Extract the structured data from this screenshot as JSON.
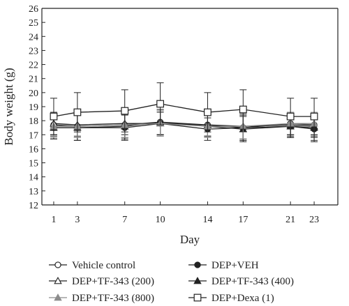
{
  "chart_data": {
    "type": "line",
    "title": "",
    "xlabel": "Day",
    "ylabel": "Body weight (g)",
    "x": [
      1,
      3,
      7,
      10,
      14,
      17,
      21,
      23
    ],
    "x_ticks": [
      "1",
      "3",
      "7",
      "10",
      "14",
      "17",
      "21",
      "23"
    ],
    "xlim": [
      0,
      25
    ],
    "ylim": [
      12,
      26
    ],
    "y_ticks": [
      "12",
      "13",
      "14",
      "15",
      "16",
      "17",
      "18",
      "19",
      "20",
      "21",
      "22",
      "23",
      "24",
      "25",
      "26"
    ],
    "grid": false,
    "legend_position": "bottom",
    "series": [
      {
        "name": "Vehicle control",
        "marker": "open-circle",
        "color": "#222222",
        "values": [
          17.7,
          17.6,
          17.7,
          17.9,
          17.7,
          17.5,
          17.8,
          17.7
        ],
        "err": [
          0.8,
          0.8,
          0.9,
          0.9,
          0.8,
          0.9,
          0.8,
          0.8
        ]
      },
      {
        "name": "DEP+VEH",
        "marker": "filled-circle",
        "color": "#222222",
        "values": [
          17.5,
          17.5,
          17.5,
          17.8,
          17.4,
          17.5,
          17.6,
          17.4
        ],
        "err": [
          0.8,
          0.9,
          0.9,
          0.9,
          0.8,
          0.9,
          0.8,
          0.9
        ]
      },
      {
        "name": "DEP+TF-343 (200)",
        "marker": "open-triangle",
        "color": "#222222",
        "values": [
          17.8,
          17.7,
          17.8,
          17.8,
          17.7,
          17.6,
          17.7,
          17.6
        ],
        "err": [
          0.8,
          0.8,
          0.8,
          0.8,
          0.8,
          0.9,
          0.8,
          0.8
        ]
      },
      {
        "name": "DEP+TF-343 (400)",
        "marker": "filled-triangle",
        "color": "#222222",
        "values": [
          17.5,
          17.5,
          17.6,
          17.9,
          17.6,
          17.4,
          17.6,
          17.5
        ],
        "err": [
          0.8,
          0.9,
          0.9,
          0.9,
          0.8,
          0.9,
          0.8,
          0.9
        ]
      },
      {
        "name": "DEP+TF-343 (800)",
        "marker": "filled-triangle",
        "color": "#8c8c8c",
        "values": [
          17.6,
          17.6,
          17.7,
          17.8,
          17.6,
          17.6,
          17.8,
          17.8
        ],
        "err": [
          0.8,
          0.8,
          0.9,
          0.9,
          0.8,
          0.9,
          0.8,
          0.8
        ]
      },
      {
        "name": "DEP+Dexa (1)",
        "marker": "open-square",
        "color": "#222222",
        "values": [
          18.3,
          18.6,
          18.7,
          19.2,
          18.6,
          18.8,
          18.3,
          18.3
        ],
        "err": [
          1.3,
          1.4,
          1.5,
          1.5,
          1.4,
          1.4,
          1.3,
          1.3
        ]
      }
    ]
  }
}
